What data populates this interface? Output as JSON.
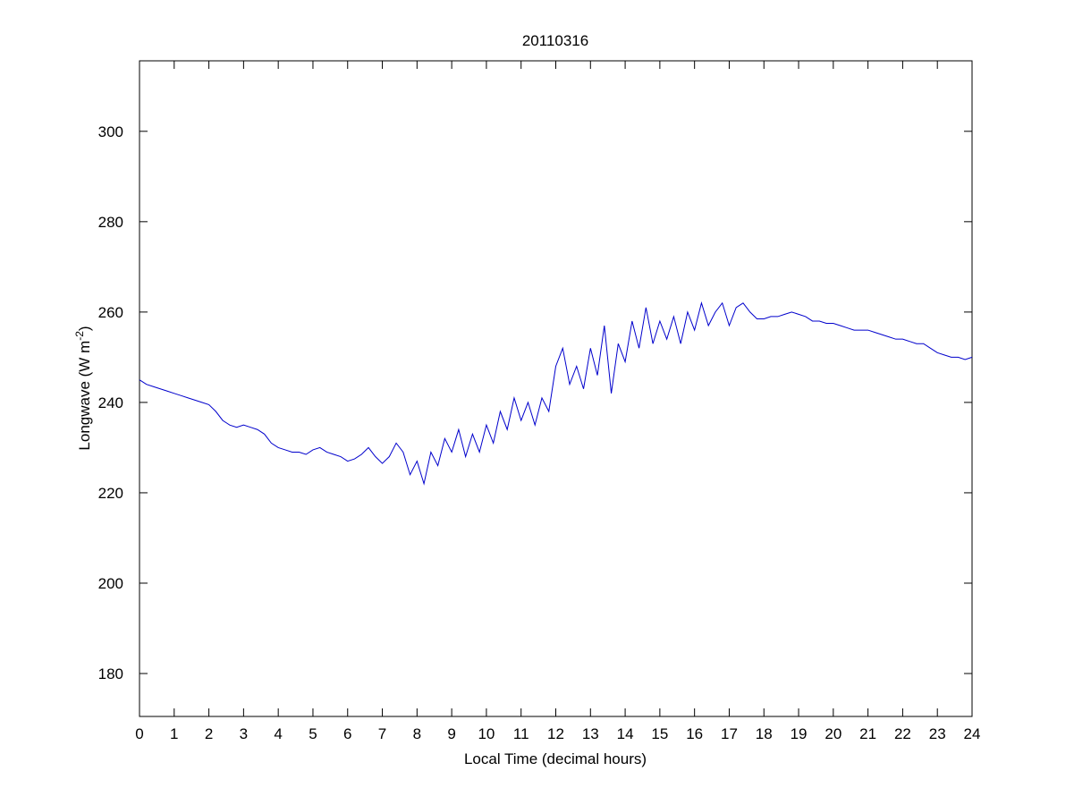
{
  "chart_data": {
    "type": "line",
    "title": "20110316",
    "xlabel": "Local Time (decimal hours)",
    "ylabel": {
      "text": "Longwave (W m",
      "superscript": "-2",
      "end": ")"
    },
    "x": [
      0,
      0.2,
      0.4,
      0.6,
      0.8,
      1,
      1.2,
      1.4,
      1.6,
      1.8,
      2,
      2.2,
      2.4,
      2.6,
      2.8,
      3,
      3.2,
      3.4,
      3.6,
      3.8,
      4,
      4.2,
      4.4,
      4.6,
      4.8,
      5,
      5.2,
      5.4,
      5.6,
      5.8,
      6,
      6.2,
      6.4,
      6.6,
      6.8,
      7,
      7.2,
      7.4,
      7.6,
      7.8,
      8,
      8.2,
      8.4,
      8.6,
      8.8,
      9,
      9.2,
      9.4,
      9.6,
      9.8,
      10,
      10.2,
      10.4,
      10.6,
      10.8,
      11,
      11.2,
      11.4,
      11.6,
      11.8,
      12,
      12.2,
      12.4,
      12.6,
      12.8,
      13,
      13.2,
      13.4,
      13.6,
      13.8,
      14,
      14.2,
      14.4,
      14.6,
      14.8,
      15,
      15.2,
      15.4,
      15.6,
      15.8,
      16,
      16.2,
      16.4,
      16.6,
      16.8,
      17,
      17.2,
      17.4,
      17.6,
      17.8,
      18,
      18.2,
      18.4,
      18.6,
      18.8,
      19,
      19.2,
      19.4,
      19.6,
      19.8,
      20,
      20.2,
      20.4,
      20.6,
      20.8,
      21,
      21.2,
      21.4,
      21.6,
      21.8,
      22,
      22.2,
      22.4,
      22.6,
      22.8,
      23,
      23.2,
      23.4,
      23.6,
      23.8,
      24
    ],
    "series": [
      {
        "name": "Longwave",
        "color": "#0000cc",
        "values": [
          245,
          244,
          243.5,
          243,
          242.5,
          242,
          241.5,
          241,
          240.5,
          240,
          239.5,
          238,
          236,
          235,
          234.5,
          235,
          234.5,
          234,
          233,
          231,
          230,
          229.5,
          229,
          229,
          228.5,
          229.5,
          230,
          229,
          228.5,
          228,
          227,
          227.5,
          228.5,
          230,
          228,
          226.5,
          228,
          231,
          229,
          224,
          227,
          222,
          229,
          226,
          232,
          229,
          234,
          228,
          233,
          229,
          235,
          231,
          238,
          234,
          241,
          236,
          240,
          235,
          241,
          238,
          248,
          252,
          244,
          248,
          243,
          252,
          246,
          257,
          242,
          253,
          249,
          258,
          252,
          261,
          253,
          258,
          254,
          259,
          253,
          260,
          256,
          262,
          257,
          260,
          262,
          257,
          261,
          262,
          260,
          258.5,
          258.5,
          259,
          259,
          259.5,
          260,
          259.5,
          259,
          258,
          258,
          257.5,
          257.5,
          257,
          256.5,
          256,
          256,
          256,
          255.5,
          255,
          254.5,
          254,
          254,
          253.5,
          253,
          253,
          252,
          251,
          250.5,
          250,
          250,
          249.5,
          250
        ]
      }
    ],
    "xlim": [
      0,
      24
    ],
    "xticks": [
      0,
      1,
      2,
      3,
      4,
      5,
      6,
      7,
      8,
      9,
      10,
      11,
      12,
      13,
      14,
      15,
      16,
      17,
      18,
      19,
      20,
      21,
      22,
      23,
      24
    ],
    "ylim": [
      170.5,
      315.6
    ],
    "yticks": [
      180,
      200,
      220,
      240,
      260,
      280,
      300
    ],
    "grid": false
  }
}
